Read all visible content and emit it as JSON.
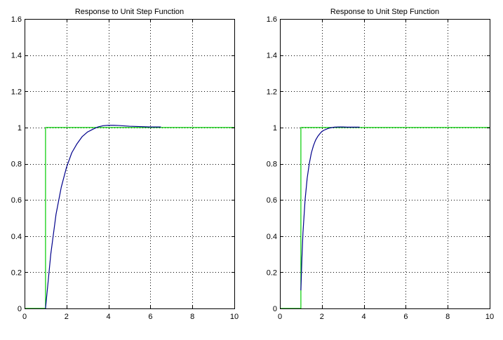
{
  "chart_data": [
    {
      "type": "line",
      "title": "Response to Unit Step Function",
      "xlabel": "",
      "ylabel": "",
      "xlim": [
        0,
        10
      ],
      "ylim": [
        0,
        1.6
      ],
      "grid": true,
      "xticks": [
        "0",
        "2",
        "4",
        "6",
        "8",
        "10"
      ],
      "yticks": [
        "0",
        "0.2",
        "0.4",
        "0.6",
        "0.8",
        "1",
        "1.2",
        "1.4",
        "1.6"
      ],
      "series": [
        {
          "color": "#00cc00",
          "x": [
            0,
            1,
            1,
            10
          ],
          "y": [
            0,
            0,
            1,
            1
          ]
        },
        {
          "color": "#00008b",
          "x": [
            1,
            1.25,
            1.5,
            1.75,
            2,
            2.25,
            2.5,
            2.75,
            3,
            3.25,
            3.5,
            3.75,
            4,
            4.25,
            4.5,
            4.75,
            5,
            5.25,
            5.5,
            5.75,
            6,
            6.25,
            6.5
          ],
          "y": [
            0,
            0.3,
            0.52,
            0.67,
            0.78,
            0.86,
            0.91,
            0.95,
            0.975,
            0.99,
            1.003,
            1.01,
            1.012,
            1.012,
            1.011,
            1.009,
            1.007,
            1.006,
            1.005,
            1.004,
            1.003,
            1.003,
            1.003
          ]
        }
      ]
    },
    {
      "type": "line",
      "title": "Response to Unit Step Function",
      "xlabel": "",
      "ylabel": "",
      "xlim": [
        0,
        10
      ],
      "ylim": [
        0,
        1.6
      ],
      "grid": true,
      "xticks": [
        "0",
        "2",
        "4",
        "6",
        "8",
        "10"
      ],
      "yticks": [
        "0",
        "0.2",
        "0.4",
        "0.6",
        "0.8",
        "1",
        "1.2",
        "1.4",
        "1.6"
      ],
      "series": [
        {
          "color": "#00cc00",
          "x": [
            0,
            1,
            1,
            10
          ],
          "y": [
            0,
            0,
            1,
            1
          ]
        },
        {
          "color": "#00008b",
          "x": [
            1,
            1.05,
            1.1,
            1.2,
            1.3,
            1.4,
            1.5,
            1.6,
            1.7,
            1.8,
            1.9,
            2,
            2.1,
            2.2,
            2.3,
            2.4,
            2.5,
            2.6,
            2.8,
            3,
            3.2,
            3.4,
            3.6,
            3.8
          ],
          "y": [
            0.1,
            0.28,
            0.42,
            0.6,
            0.72,
            0.8,
            0.86,
            0.9,
            0.93,
            0.95,
            0.965,
            0.978,
            0.985,
            0.99,
            0.995,
            0.998,
            1.0,
            1.002,
            1.003,
            1.003,
            1.002,
            1.002,
            1.002,
            1.002
          ]
        }
      ]
    }
  ]
}
